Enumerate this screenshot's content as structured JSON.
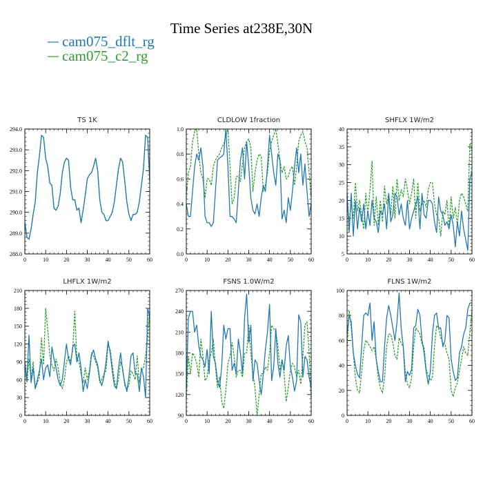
{
  "title": "Time Series at238E,30N",
  "legend": [
    {
      "label": "cam075_dflt_rg",
      "color": "#1f77b4",
      "dash": "solid"
    },
    {
      "label": "cam075_c2_rg",
      "color": "#2ca02c",
      "dash": "dashed"
    }
  ],
  "chart_data": [
    {
      "type": "line",
      "title": "TS   1K",
      "xlim": [
        0,
        60
      ],
      "ylim": [
        288.0,
        294.0
      ],
      "xticks": [
        0,
        10,
        20,
        30,
        40,
        50,
        60
      ],
      "yticks": [
        288.0,
        289.0,
        290.0,
        291.0,
        292.0,
        293.0,
        294.0
      ],
      "ydecimals": 1,
      "series": [
        {
          "name": "cam075_dflt_rg",
          "values": [
            289.5,
            288.8,
            288.7,
            289.2,
            289.9,
            290.5,
            291.9,
            292.7,
            293.7,
            293.6,
            292.6,
            292.2,
            291.4,
            291.3,
            290.2,
            290.1,
            290.3,
            290.9,
            291.9,
            292.4,
            292.6,
            292.5,
            291.2,
            290.6,
            290.6,
            290.1,
            290.2,
            289.5,
            290.1,
            290.8,
            291.6,
            291.8,
            291.9,
            292.2,
            292.6,
            292.0,
            290.6,
            290.0,
            289.9,
            289.6,
            289.6,
            289.8,
            290.0,
            290.5,
            291.3,
            292.1,
            292.6,
            292.4,
            291.5,
            290.5,
            289.9,
            289.6,
            289.9,
            289.9,
            290.0,
            290.5,
            291.3,
            292.1,
            293.7,
            293.6,
            291.5
          ]
        },
        {
          "name": "cam075_c2_rg",
          "values": [
            289.5,
            288.8,
            288.7,
            289.2,
            289.9,
            290.5,
            291.9,
            292.7,
            293.7,
            293.6,
            292.6,
            292.2,
            291.4,
            291.3,
            290.2,
            290.1,
            290.3,
            290.9,
            291.9,
            292.4,
            292.6,
            292.5,
            291.2,
            290.6,
            290.6,
            290.1,
            290.2,
            289.5,
            290.1,
            290.8,
            291.6,
            291.8,
            291.9,
            292.2,
            292.6,
            292.0,
            290.6,
            290.0,
            289.9,
            289.6,
            289.6,
            289.8,
            290.0,
            290.5,
            291.3,
            292.1,
            292.6,
            292.4,
            291.5,
            290.5,
            289.9,
            289.6,
            289.9,
            289.9,
            290.0,
            290.5,
            291.3,
            292.1,
            293.7,
            293.6,
            291.5
          ]
        }
      ]
    },
    {
      "type": "line",
      "title": "CLDLOW   1fraction",
      "xlim": [
        0,
        60
      ],
      "ylim": [
        0.0,
        1.0
      ],
      "xticks": [
        0,
        10,
        20,
        30,
        40,
        50,
        60
      ],
      "yticks": [
        0.0,
        0.2,
        0.4,
        0.6,
        0.8,
        1.0
      ],
      "ydecimals": 1,
      "series": [
        {
          "name": "cam075_dflt_rg",
          "values": [
            0.4,
            0.3,
            0.3,
            0.5,
            0.7,
            0.8,
            0.75,
            0.85,
            0.7,
            0.3,
            0.25,
            0.25,
            0.22,
            0.25,
            0.5,
            0.75,
            0.77,
            0.78,
            0.8,
            1.0,
            0.7,
            0.3,
            0.3,
            0.28,
            0.25,
            0.5,
            0.75,
            0.85,
            0.6,
            0.9,
            0.7,
            0.45,
            0.35,
            0.32,
            0.4,
            0.3,
            0.45,
            0.55,
            0.5,
            0.7,
            0.95,
            0.8,
            0.65,
            0.55,
            0.8,
            0.75,
            0.28,
            0.35,
            0.25,
            0.45,
            0.35,
            0.5,
            0.7,
            0.85,
            0.65,
            0.8,
            0.55,
            0.72,
            0.5,
            0.3,
            0.4
          ]
        },
        {
          "name": "cam075_c2_rg",
          "values": [
            0.45,
            0.65,
            0.7,
            0.9,
            0.98,
            1.0,
            0.8,
            0.65,
            0.6,
            0.45,
            0.6,
            0.6,
            0.55,
            0.7,
            0.75,
            0.78,
            0.8,
            0.85,
            0.88,
            0.95,
            1.0,
            0.7,
            0.4,
            0.45,
            0.62,
            0.62,
            0.58,
            0.72,
            0.85,
            0.9,
            0.92,
            0.85,
            0.5,
            0.65,
            0.75,
            0.8,
            0.78,
            0.5,
            0.55,
            0.65,
            0.82,
            0.9,
            0.95,
            1.0,
            0.88,
            0.75,
            0.65,
            0.7,
            0.6,
            0.62,
            0.68,
            0.7,
            0.55,
            0.7,
            0.9,
            0.95,
            0.98,
            0.9,
            0.85,
            0.65,
            0.45
          ]
        }
      ]
    },
    {
      "type": "line",
      "title": "SHFLX   1W/m2",
      "xlim": [
        0,
        60
      ],
      "ylim": [
        5,
        40
      ],
      "xticks": [
        0,
        10,
        20,
        30,
        40,
        50,
        60
      ],
      "yticks": [
        5,
        10,
        15,
        20,
        25,
        30,
        35,
        40
      ],
      "ydecimals": 0,
      "series": [
        {
          "name": "cam075_dflt_rg",
          "values": [
            22,
            11,
            22,
            10,
            20,
            12,
            18,
            14,
            19,
            12,
            17,
            13,
            20,
            15,
            14,
            11,
            17,
            16,
            19,
            12,
            22,
            14,
            16,
            22,
            21,
            16,
            19,
            15,
            13,
            20,
            12,
            15,
            17,
            19,
            21,
            12,
            22,
            16,
            15,
            20,
            20,
            19,
            14,
            11,
            21,
            17,
            16,
            13,
            14,
            12,
            16,
            13,
            7,
            14,
            10,
            17,
            12,
            9,
            6,
            26,
            28
          ]
        },
        {
          "name": "cam075_c2_rg",
          "values": [
            20,
            14,
            19,
            15,
            25,
            17,
            20,
            16,
            12,
            22,
            16,
            23,
            31,
            13,
            21,
            13,
            20,
            14,
            24,
            19,
            22,
            16,
            24,
            15,
            26,
            20,
            23,
            21,
            26,
            23,
            19,
            22,
            26,
            15,
            25,
            17,
            19,
            20,
            18,
            23,
            25,
            25,
            19,
            16,
            15,
            10,
            17,
            16,
            20,
            12,
            21,
            15,
            18,
            13,
            20,
            22,
            21,
            19,
            17,
            36,
            34
          ]
        }
      ]
    },
    {
      "type": "line",
      "title": "LHFLX   1W/m2",
      "xlim": [
        0,
        60
      ],
      "ylim": [
        0,
        210
      ],
      "xticks": [
        0,
        10,
        20,
        30,
        40,
        50,
        60
      ],
      "yticks": [
        0,
        30,
        60,
        90,
        120,
        150,
        180,
        210
      ],
      "ydecimals": 0,
      "series": [
        {
          "name": "cam075_dflt_rg",
          "values": [
            90,
            60,
            135,
            55,
            80,
            45,
            60,
            75,
            95,
            60,
            80,
            85,
            65,
            115,
            95,
            80,
            60,
            50,
            60,
            90,
            120,
            95,
            85,
            115,
            120,
            90,
            105,
            80,
            40,
            60,
            45,
            70,
            100,
            110,
            95,
            85,
            60,
            50,
            65,
            90,
            125,
            105,
            75,
            50,
            45,
            80,
            105,
            75,
            55,
            40,
            65,
            100,
            105,
            70,
            70,
            40,
            80,
            65,
            30,
            180,
            165
          ]
        },
        {
          "name": "cam075_c2_rg",
          "values": [
            80,
            55,
            95,
            60,
            90,
            45,
            55,
            65,
            130,
            85,
            180,
            145,
            100,
            85,
            75,
            95,
            80,
            55,
            45,
            60,
            90,
            100,
            90,
            110,
            175,
            95,
            90,
            70,
            55,
            80,
            60,
            75,
            105,
            100,
            90,
            80,
            55,
            60,
            70,
            75,
            120,
            110,
            85,
            60,
            45,
            60,
            90,
            80,
            50,
            45,
            50,
            75,
            70,
            60,
            100,
            55,
            75,
            80,
            100,
            130,
            175
          ]
        }
      ]
    },
    {
      "type": "line",
      "title": "FSNS   1.0W/m2",
      "xlim": [
        0,
        60
      ],
      "ylim": [
        90,
        270
      ],
      "xticks": [
        0,
        10,
        20,
        30,
        40,
        50,
        60
      ],
      "yticks": [
        90,
        120,
        150,
        180,
        210,
        240,
        270
      ],
      "ydecimals": 0,
      "series": [
        {
          "name": "cam075_dflt_rg",
          "values": [
            130,
            230,
            240,
            240,
            210,
            220,
            190,
            175,
            170,
            160,
            185,
            150,
            240,
            175,
            165,
            140,
            130,
            160,
            220,
            200,
            215,
            215,
            155,
            165,
            150,
            200,
            180,
            150,
            230,
            265,
            195,
            220,
            140,
            170,
            165,
            140,
            120,
            150,
            185,
            210,
            250,
            140,
            160,
            215,
            165,
            145,
            170,
            155,
            190,
            205,
            160,
            145,
            125,
            140,
            235,
            225,
            145,
            175,
            170,
            145,
            130
          ]
        },
        {
          "name": "cam075_c2_rg",
          "values": [
            115,
            175,
            150,
            180,
            175,
            165,
            145,
            200,
            175,
            140,
            145,
            170,
            180,
            200,
            160,
            130,
            145,
            110,
            100,
            125,
            165,
            175,
            195,
            175,
            145,
            155,
            155,
            145,
            180,
            180,
            220,
            180,
            150,
            130,
            90,
            120,
            150,
            150,
            160,
            155,
            180,
            220,
            215,
            210,
            190,
            155,
            170,
            150,
            110,
            130,
            155,
            165,
            160,
            145,
            155,
            135,
            175,
            220,
            225,
            180,
            115
          ]
        }
      ]
    },
    {
      "type": "line",
      "title": "FLNS   1W/m2",
      "xlim": [
        0,
        60
      ],
      "ylim": [
        0,
        100
      ],
      "xticks": [
        0,
        10,
        20,
        30,
        40,
        50,
        60
      ],
      "yticks": [
        0,
        20,
        40,
        60,
        80,
        100
      ],
      "ydecimals": 0,
      "series": [
        {
          "name": "cam075_dflt_rg",
          "values": [
            65,
            80,
            75,
            50,
            40,
            33,
            30,
            55,
            80,
            82,
            80,
            90,
            60,
            75,
            45,
            35,
            27,
            27,
            55,
            78,
            88,
            80,
            70,
            60,
            75,
            98,
            70,
            55,
            27,
            35,
            32,
            37,
            70,
            72,
            85,
            80,
            60,
            50,
            35,
            25,
            35,
            65,
            80,
            82,
            70,
            70,
            55,
            60,
            80,
            78,
            45,
            35,
            28,
            30,
            50,
            55,
            65,
            70,
            85,
            90,
            90
          ]
        },
        {
          "name": "cam075_c2_rg",
          "values": [
            55,
            84,
            70,
            50,
            30,
            20,
            18,
            35,
            52,
            60,
            58,
            55,
            52,
            55,
            45,
            30,
            22,
            18,
            30,
            55,
            65,
            65,
            58,
            48,
            45,
            62,
            58,
            55,
            35,
            25,
            22,
            30,
            55,
            70,
            68,
            65,
            57,
            55,
            37,
            32,
            28,
            30,
            55,
            72,
            70,
            62,
            58,
            57,
            50,
            45,
            20,
            15,
            22,
            26,
            36,
            45,
            55,
            50,
            48,
            67,
            84
          ]
        }
      ]
    }
  ]
}
